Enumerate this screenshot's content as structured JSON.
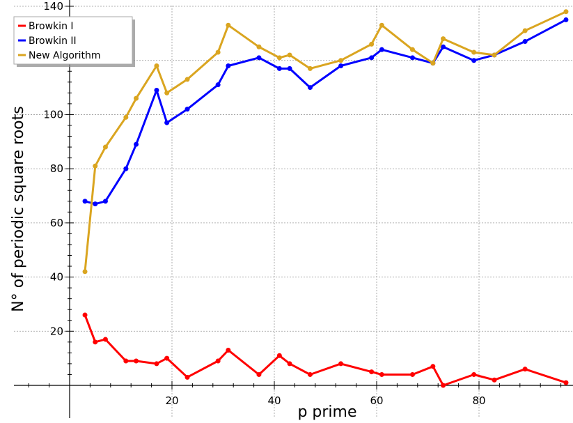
{
  "chart_data": {
    "type": "line",
    "xlabel": "p prime",
    "ylabel": "N° of periodic square roots",
    "xlim": [
      0,
      98
    ],
    "ylim": [
      -4,
      140
    ],
    "x_ticks": [
      20,
      40,
      60,
      80
    ],
    "y_ticks": [
      20,
      40,
      60,
      80,
      100,
      120,
      140
    ],
    "y_tick_labels": [
      "20",
      "40",
      "60",
      "80",
      "100",
      "",
      "140"
    ],
    "grid": true,
    "legend_position": "top-left",
    "x": [
      3,
      5,
      7,
      11,
      13,
      17,
      19,
      23,
      29,
      31,
      37,
      41,
      43,
      47,
      53,
      59,
      61,
      67,
      71,
      73,
      79,
      83,
      89,
      97
    ],
    "series": [
      {
        "name": "Browkin I",
        "color": "#ff0000",
        "values": [
          26,
          16,
          17,
          9,
          9,
          8,
          10,
          3,
          9,
          13,
          4,
          11,
          8,
          4,
          8,
          5,
          4,
          4,
          7,
          0,
          4,
          2,
          6,
          1
        ]
      },
      {
        "name": "Browkin II",
        "color": "#0000ff",
        "values": [
          68,
          67,
          68,
          80,
          89,
          109,
          97,
          102,
          111,
          118,
          121,
          117,
          117,
          110,
          118,
          121,
          124,
          121,
          119,
          125,
          120,
          122,
          127,
          135
        ]
      },
      {
        "name": "New Algorithm",
        "color": "#daa520",
        "values": [
          42,
          81,
          88,
          99,
          106,
          118,
          108,
          113,
          123,
          133,
          125,
          121,
          122,
          117,
          120,
          126,
          133,
          124,
          119,
          128,
          123,
          122,
          131,
          138
        ]
      }
    ]
  }
}
